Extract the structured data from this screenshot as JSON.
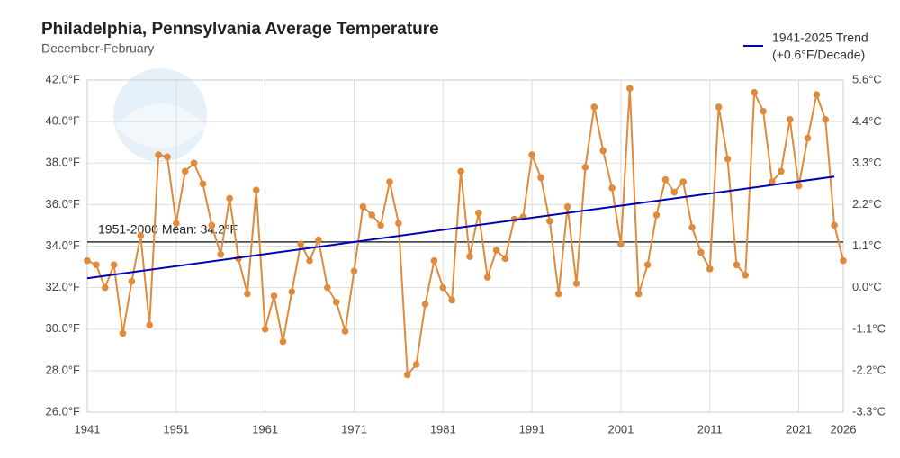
{
  "chart_data": {
    "type": "line",
    "title": "Philadelphia, Pennsylvania Average Temperature",
    "subtitle": "December-February",
    "xlim": [
      1941,
      2026
    ],
    "xticks": [
      1941,
      1951,
      1961,
      1971,
      1981,
      1991,
      2001,
      2011,
      2021,
      2026
    ],
    "ylim": [
      26,
      42
    ],
    "yticks": [
      {
        "value": 26,
        "label": "26.0°F"
      },
      {
        "value": 28,
        "label": "28.0°F"
      },
      {
        "value": 30,
        "label": "30.0°F"
      },
      {
        "value": 32,
        "label": "32.0°F"
      },
      {
        "value": 34,
        "label": "34.0°F"
      },
      {
        "value": 36,
        "label": "36.0°F"
      },
      {
        "value": 38,
        "label": "38.0°F"
      },
      {
        "value": 40,
        "label": "40.0°F"
      },
      {
        "value": 42,
        "label": "42.0°F"
      }
    ],
    "y2lim": [
      -3.33,
      5.56
    ],
    "y2ticks": [
      {
        "value": -3.33,
        "label": "-3.3°C"
      },
      {
        "value": -2.22,
        "label": "-2.2°C"
      },
      {
        "value": -1.11,
        "label": "-1.1°C"
      },
      {
        "value": 0,
        "label": "0.0°C"
      },
      {
        "value": 1.11,
        "label": "1.1°C"
      },
      {
        "value": 2.22,
        "label": "2.2°C"
      },
      {
        "value": 3.33,
        "label": "3.3°C"
      },
      {
        "value": 4.44,
        "label": "4.4°C"
      },
      {
        "value": 5.56,
        "label": "5.6°C"
      }
    ],
    "grid": true,
    "legend_position": "top-right",
    "reference_line": {
      "label": "1951-2000 Mean: 34.2°F",
      "value": 34.2,
      "color": "#333333"
    },
    "series": [
      {
        "color": "#e08a3c",
        "x": [
          1941,
          1942,
          1943,
          1944,
          1945,
          1946,
          1947,
          1948,
          1949,
          1950,
          1951,
          1952,
          1953,
          1954,
          1955,
          1956,
          1957,
          1958,
          1959,
          1960,
          1961,
          1962,
          1963,
          1964,
          1965,
          1966,
          1967,
          1968,
          1969,
          1970,
          1971,
          1972,
          1973,
          1974,
          1975,
          1976,
          1977,
          1978,
          1979,
          1980,
          1981,
          1982,
          1983,
          1984,
          1985,
          1986,
          1987,
          1988,
          1989,
          1990,
          1991,
          1992,
          1993,
          1994,
          1995,
          1996,
          1997,
          1998,
          1999,
          2000,
          2001,
          2002,
          2003,
          2004,
          2005,
          2006,
          2007,
          2008,
          2009,
          2010,
          2011,
          2012,
          2013,
          2014,
          2015,
          2016,
          2017,
          2018,
          2019,
          2020,
          2021,
          2022,
          2023,
          2024,
          2025,
          2026
        ],
        "values": [
          33.3,
          33.1,
          32.0,
          33.1,
          29.8,
          32.3,
          34.5,
          30.2,
          38.4,
          38.3,
          35.1,
          37.6,
          38.0,
          37.0,
          35.0,
          33.6,
          36.3,
          33.4,
          31.7,
          36.7,
          30.0,
          31.6,
          29.4,
          31.8,
          34.1,
          33.3,
          34.3,
          32.0,
          31.3,
          29.9,
          32.8,
          35.9,
          35.5,
          35.0,
          37.1,
          35.1,
          27.8,
          28.3,
          31.2,
          33.3,
          32.0,
          31.4,
          37.6,
          33.5,
          35.6,
          32.5,
          33.8,
          33.4,
          35.3,
          35.4,
          38.4,
          37.3,
          35.2,
          31.7,
          35.9,
          32.2,
          37.8,
          40.7,
          38.6,
          36.8,
          34.1,
          41.6,
          31.7,
          33.1,
          35.5,
          37.2,
          36.6,
          37.1,
          34.9,
          33.7,
          32.9,
          40.7,
          38.2,
          33.1,
          32.6,
          41.4,
          40.5,
          37.1,
          37.6,
          40.1,
          36.9,
          39.2,
          41.3,
          40.1,
          35.0,
          33.3
        ]
      },
      {
        "name": "1941-2025 Trend",
        "note": "(+0.6°F/Decade)",
        "color": "#0000b3",
        "x": [
          1941,
          2025
        ],
        "values": [
          32.45,
          37.35
        ]
      }
    ]
  }
}
